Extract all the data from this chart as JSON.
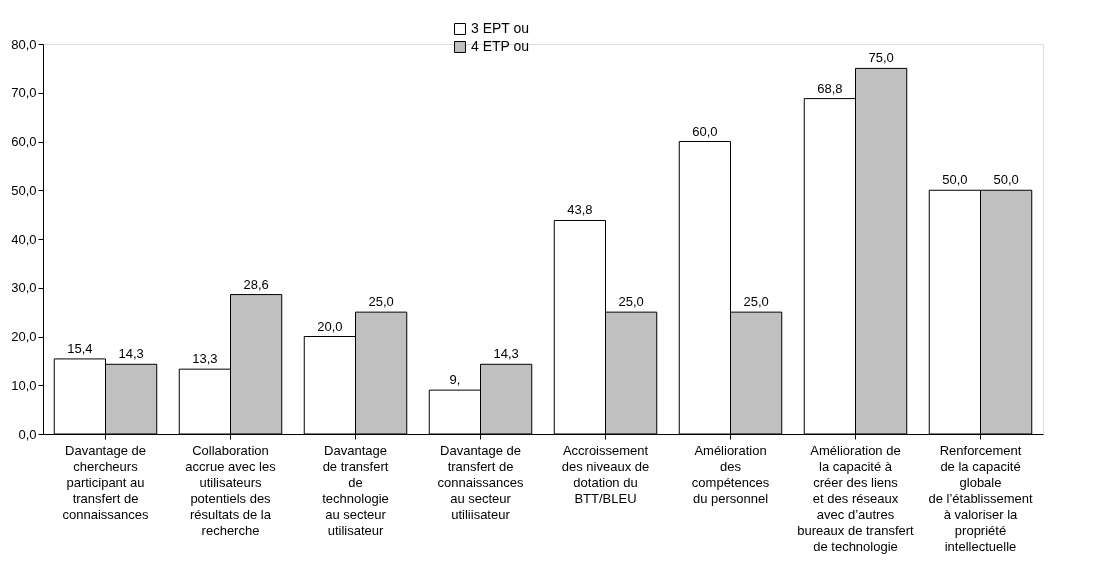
{
  "chart_data": {
    "type": "bar",
    "categories": [
      "Davantage de\nchercheurs\nparticipant au\ntransfert de\nconnaissances",
      "Collaboration\naccrue avec les\nutilisateurs\npotentiels des\nrésultats de la\nrecherche",
      "Davantage\nde transfert\nde\ntechnologie\nau secteur\nutilisateur",
      "Davantage de\ntransfert de\nconnaissances\nau secteur\nutiliisateur",
      "Accroissement\ndes niveaux de\ndotation du\nBTT/BLEU",
      "Amélioration\ndes\ncompétences\ndu personnel",
      "Amélioration de\nla capacité à\ncréer des liens\net des réseaux\navec d’autres\nbureaux de transfert\nde technologie",
      "Renforcement\nde la capacité\nglobale\nde l’établissement\nà valoriser la\npropriété\nintellectuelle"
    ],
    "series": [
      {
        "name": "3 EPT ou",
        "color": "#ffffff",
        "values": [
          15.4,
          13.3,
          20.0,
          9,
          43.8,
          60.0,
          68.8,
          50.0
        ],
        "value_labels": [
          "15,4",
          "13,3",
          "20,0",
          "9,",
          "43,8",
          "60,0",
          "68,8",
          "50,0"
        ]
      },
      {
        "name": "4 ETP ou",
        "color": "#c0c0c0",
        "values": [
          14.3,
          28.6,
          25.0,
          14.3,
          25.0,
          25.0,
          75.0,
          50.0
        ],
        "value_labels": [
          "14,3",
          "28,6",
          "25,0",
          "14,3",
          "25,0",
          "25,0",
          "75,0",
          "50,0"
        ]
      }
    ],
    "ylim": [
      0,
      80
    ],
    "yticks": [
      {
        "value": 0,
        "label": "0,0"
      },
      {
        "value": 10,
        "label": "10,0"
      },
      {
        "value": 20,
        "label": "20,0"
      },
      {
        "value": 30,
        "label": "30,0"
      },
      {
        "value": 40,
        "label": "40,0"
      },
      {
        "value": 50,
        "label": "50,0"
      },
      {
        "value": 60,
        "label": "60,0"
      },
      {
        "value": 70,
        "label": "70,0"
      },
      {
        "value": 80,
        "label": "80,0"
      }
    ],
    "grid": false,
    "legend": "top"
  }
}
